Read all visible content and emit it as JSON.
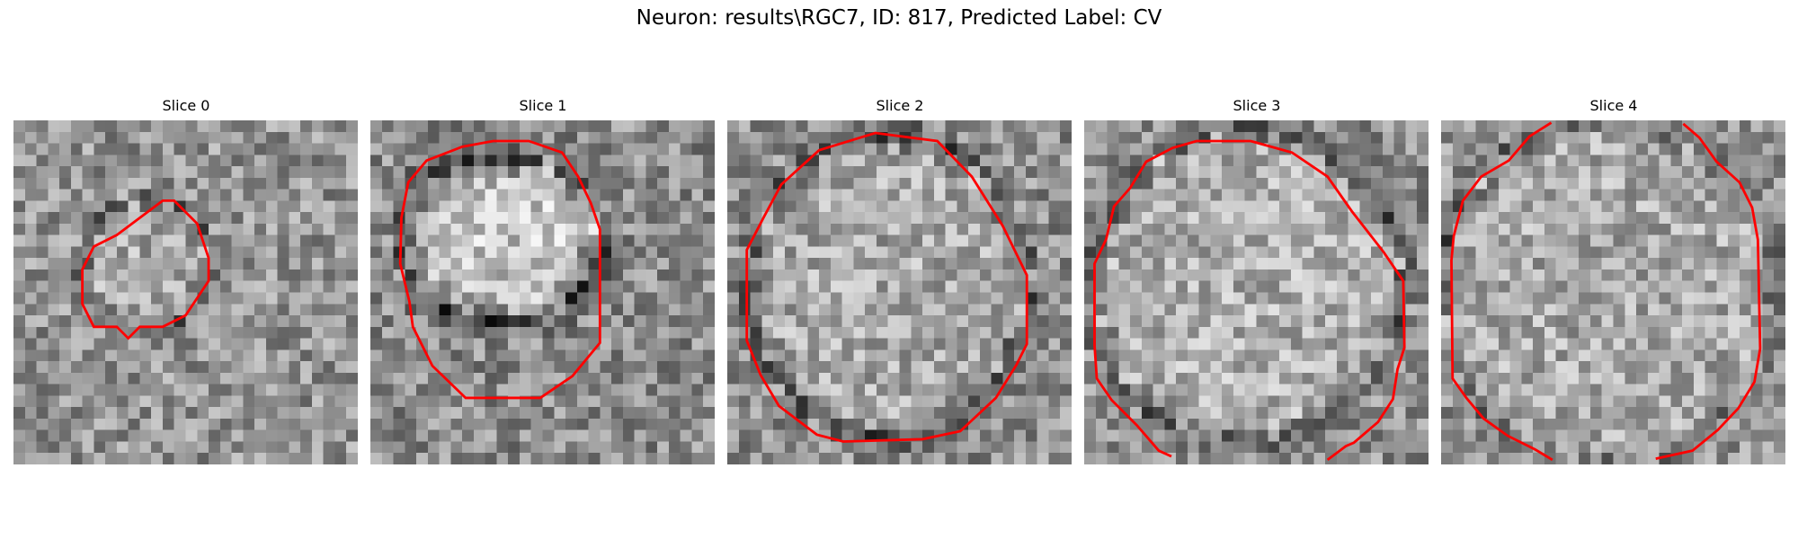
{
  "figure": {
    "title": "Neuron: results\\RGC7, ID: 817, Predicted Label: CV",
    "contour_color": "#ff0000",
    "background_color": "#ffffff",
    "colormap": "grayscale"
  },
  "slices": [
    {
      "title": "Slice 0"
    },
    {
      "title": "Slice 1"
    },
    {
      "title": "Slice 2"
    },
    {
      "title": "Slice 3"
    },
    {
      "title": "Slice 4"
    }
  ]
}
